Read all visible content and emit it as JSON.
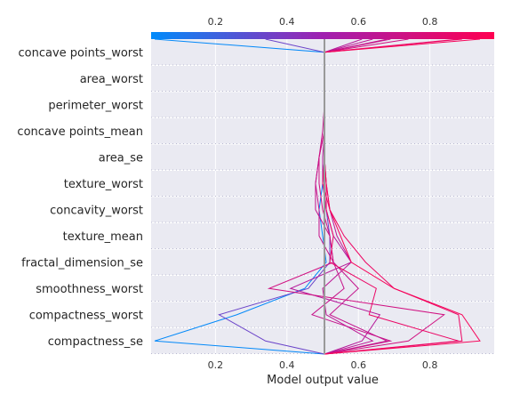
{
  "chart_data": {
    "type": "line",
    "title": "",
    "xlabel": "Model output value",
    "xlim": [
      0.02,
      0.98
    ],
    "base_value": 0.505,
    "x_ticks": [
      0.2,
      0.4,
      0.6,
      0.8
    ],
    "colorbar": {
      "ticks": [
        0.2,
        0.4,
        0.6,
        0.8
      ],
      "color_low": "#008bfb",
      "color_high": "#ff0051"
    },
    "features": [
      "concave points_worst",
      "area_worst",
      "perimeter_worst",
      "concave points_mean",
      "area_se",
      "texture_worst",
      "concavity_worst",
      "texture_mean",
      "fractal_dimension_se",
      "smoothness_worst",
      "compactness_worst",
      "compactness_se"
    ],
    "series": [
      {
        "path": [
          0.505,
          0.505,
          0.505,
          0.505,
          0.505,
          0.5,
          0.49,
          0.5,
          0.51,
          0.45,
          0.26,
          0.03
        ],
        "output": 0.03
      },
      {
        "path": [
          0.505,
          0.505,
          0.505,
          0.505,
          0.505,
          0.5,
          0.51,
          0.52,
          0.52,
          0.46,
          0.21,
          0.34
        ],
        "output": 0.34
      },
      {
        "path": [
          0.505,
          0.505,
          0.505,
          0.505,
          0.5,
          0.5,
          0.51,
          0.53,
          0.58,
          0.41,
          0.66,
          0.61
        ],
        "output": 0.61
      },
      {
        "path": [
          0.505,
          0.505,
          0.505,
          0.505,
          0.505,
          0.51,
          0.52,
          0.54,
          0.58,
          0.5,
          0.51,
          0.64
        ],
        "output": 0.64
      },
      {
        "path": [
          0.505,
          0.505,
          0.505,
          0.505,
          0.49,
          0.48,
          0.48,
          0.52,
          0.53,
          0.6,
          0.52,
          0.68
        ],
        "output": 0.68
      },
      {
        "path": [
          0.505,
          0.505,
          0.505,
          0.5,
          0.49,
          0.48,
          0.49,
          0.49,
          0.53,
          0.56,
          0.47,
          0.69
        ],
        "output": 0.69
      },
      {
        "path": [
          0.505,
          0.505,
          0.505,
          0.505,
          0.49,
          0.49,
          0.5,
          0.52,
          0.53,
          0.35,
          0.84,
          0.74
        ],
        "output": 0.74
      },
      {
        "path": [
          0.505,
          0.505,
          0.505,
          0.505,
          0.505,
          0.51,
          0.51,
          0.53,
          0.52,
          0.65,
          0.63,
          0.88
        ],
        "output": 0.88
      },
      {
        "path": [
          0.505,
          0.505,
          0.505,
          0.505,
          0.505,
          0.5,
          0.52,
          0.56,
          0.62,
          0.7,
          0.88,
          0.89
        ],
        "output": 0.89
      },
      {
        "path": [
          0.505,
          0.505,
          0.505,
          0.505,
          0.505,
          0.51,
          0.52,
          0.55,
          0.58,
          0.7,
          0.89,
          0.94
        ],
        "output": 0.94
      }
    ]
  }
}
